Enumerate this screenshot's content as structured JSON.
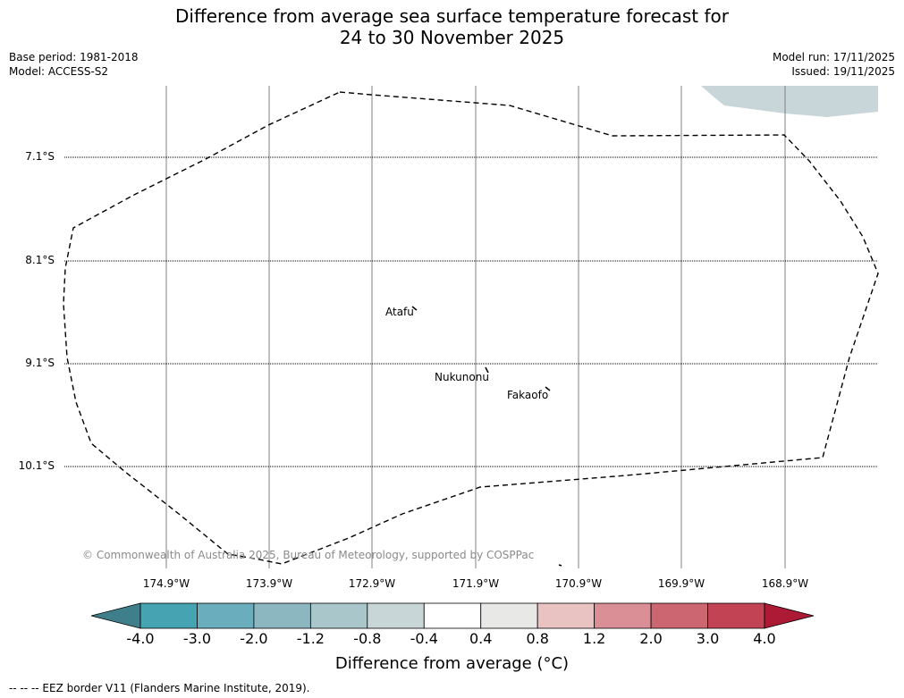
{
  "title_line1": "Difference from average sea surface temperature forecast for",
  "title_line2": "24 to 30 November 2025",
  "meta_left": {
    "base_period": "Base period: 1981-2018",
    "model": "Model: ACCESS-S2"
  },
  "meta_right": {
    "model_run": "Model run: 17/11/2025",
    "issued": "Issued: 19/11/2025"
  },
  "map": {
    "latitudes": [
      "7.1°S",
      "8.1°S",
      "9.1°S",
      "10.1°S"
    ],
    "longitudes": [
      "174.9°W",
      "173.9°W",
      "172.9°W",
      "171.9°W",
      "170.9°W",
      "169.9°W",
      "168.9°W"
    ],
    "islands": [
      "Atafu",
      "Nukunonu",
      "Fakaofo"
    ],
    "copyright": "© Commonwealth of Australia 2025, Bureau of Meteorology, supported by COSPPac",
    "land_color": "#c9d6d9"
  },
  "colorbar": {
    "ticks": [
      "-4.0",
      "-3.0",
      "-2.0",
      "-1.2",
      "-0.8",
      "-0.4",
      "0.4",
      "0.8",
      "1.2",
      "2.0",
      "3.0",
      "4.0"
    ],
    "colors": [
      "#3f7f8c",
      "#46a3b2",
      "#6aadbc",
      "#8db7c0",
      "#a9c6cb",
      "#c9d6d7",
      "#ffffff",
      "#e8e8e6",
      "#e9c3c1",
      "#d98f95",
      "#cc6670",
      "#c24454",
      "#ad1a35"
    ],
    "label": "Difference from average (°C)"
  },
  "legend_eez": "--  --  -- EEZ border V11 (Flanders Marine Institute, 2019)."
}
